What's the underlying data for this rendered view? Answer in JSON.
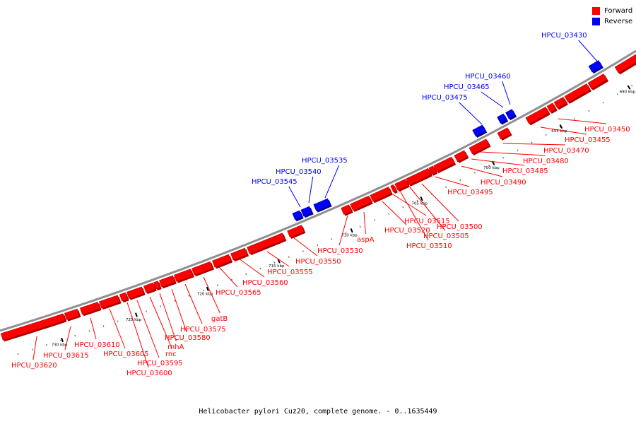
{
  "colors": {
    "forward": "#ff0000",
    "reverse": "#0000ff",
    "backbone": "#999999"
  },
  "legend": [
    {
      "label": "Forward",
      "color": "#ff0000"
    },
    {
      "label": "Reverse",
      "color": "#0000ff"
    }
  ],
  "caption": "Helicobacter pylori Cuz20, complete genome. - 0..1635449",
  "scale_ticks": [
    "690 kbp",
    "695 kbp",
    "700 kbp",
    "705 kbp",
    "710 kbp",
    "715 kbp",
    "720 kbp",
    "725 kbp",
    "730 kbp"
  ],
  "gene_labels": [
    {
      "text": "HPCU_03430",
      "strand": "reverse"
    },
    {
      "text": "HPCU_03460",
      "strand": "reverse"
    },
    {
      "text": "HPCU_03465",
      "strand": "reverse"
    },
    {
      "text": "HPCU_03475",
      "strand": "reverse"
    },
    {
      "text": "HPCU_03535",
      "strand": "reverse"
    },
    {
      "text": "HPCU_03540",
      "strand": "reverse"
    },
    {
      "text": "HPCU_03545",
      "strand": "reverse"
    },
    {
      "text": "HPCU_03450",
      "strand": "forward"
    },
    {
      "text": "HPCU_03455",
      "strand": "forward"
    },
    {
      "text": "HPCU_03470",
      "strand": "forward"
    },
    {
      "text": "HPCU_03480",
      "strand": "forward"
    },
    {
      "text": "HPCU_03485",
      "strand": "forward"
    },
    {
      "text": "HPCU_03490",
      "strand": "forward"
    },
    {
      "text": "HPCU_03495",
      "strand": "forward"
    },
    {
      "text": "HPCU_03500",
      "strand": "forward"
    },
    {
      "text": "HPCU_03505",
      "strand": "forward"
    },
    {
      "text": "HPCU_03510",
      "strand": "forward"
    },
    {
      "text": "HPCU_03515",
      "strand": "forward"
    },
    {
      "text": "HPCU_03520",
      "strand": "forward"
    },
    {
      "text": "aspA",
      "strand": "forward"
    },
    {
      "text": "HPCU_03530",
      "strand": "forward"
    },
    {
      "text": "HPCU_03550",
      "strand": "forward"
    },
    {
      "text": "HPCU_03555",
      "strand": "forward"
    },
    {
      "text": "HPCU_03560",
      "strand": "forward"
    },
    {
      "text": "HPCU_03565",
      "strand": "forward"
    },
    {
      "text": "gatB",
      "strand": "forward"
    },
    {
      "text": "HPCU_03575",
      "strand": "forward"
    },
    {
      "text": "HPCU_03580",
      "strand": "forward"
    },
    {
      "text": "rnhA",
      "strand": "forward"
    },
    {
      "text": "rnc",
      "strand": "forward"
    },
    {
      "text": "HPCU_03595",
      "strand": "forward"
    },
    {
      "text": "HPCU_03600",
      "strand": "forward"
    },
    {
      "text": "HPCU_03605",
      "strand": "forward"
    },
    {
      "text": "HPCU_03610",
      "strand": "forward"
    },
    {
      "text": "HPCU_03615",
      "strand": "forward"
    },
    {
      "text": "HPCU_03620",
      "strand": "forward"
    }
  ]
}
